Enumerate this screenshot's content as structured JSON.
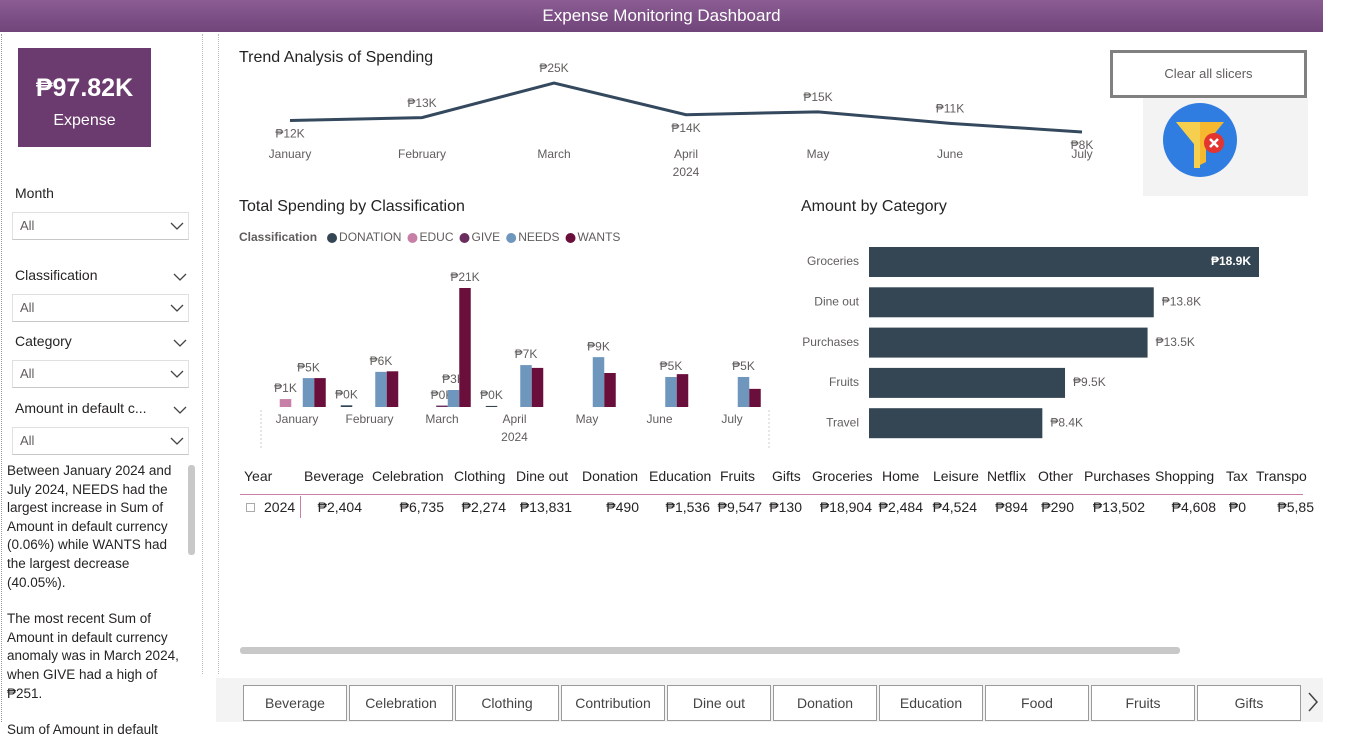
{
  "header": {
    "title": "Expense Monitoring Dashboard"
  },
  "kpi": {
    "value": "₱97.82K",
    "label": "Expense"
  },
  "slicers": [
    {
      "label": "Month",
      "value": "All"
    },
    {
      "label": "Classification",
      "value": "All"
    },
    {
      "label": "Category",
      "value": "All"
    },
    {
      "label": "Amount in default c...",
      "value": "All"
    }
  ],
  "narrative": [
    "Between January 2024 and July 2024, NEEDS had the largest increase in Sum of Amount in default currency (0.06%) while WANTS had the largest decrease (40.05%).",
    "The most recent Sum of Amount in default currency anomaly was in March 2024, when GIVE had a high of ₱251.",
    "Sum of Amount in default"
  ],
  "clear_button": "Clear all slicers",
  "chart_data": [
    {
      "type": "line",
      "title": "Trend Analysis of Spending",
      "categories": [
        "January",
        "February",
        "March",
        "April",
        "May",
        "June",
        "July"
      ],
      "x_group_label": "2024",
      "values": [
        12,
        13,
        25,
        14,
        15,
        11,
        8
      ],
      "value_labels": [
        "₱12K",
        "₱13K",
        "₱25K",
        "₱14K",
        "₱15K",
        "₱11K",
        "₱8K"
      ],
      "color": "#34495e"
    },
    {
      "type": "bar",
      "title": "Total Spending by Classification",
      "legend_title": "Classification",
      "categories": [
        "January",
        "February",
        "March",
        "April",
        "May",
        "June",
        "July"
      ],
      "x_group_label": "2024",
      "series": [
        {
          "name": "DONATION",
          "color": "#344654",
          "values": [
            null,
            0.3,
            null,
            0.19,
            null,
            null,
            null
          ],
          "value_labels": [
            null,
            "₱0K",
            null,
            "₱0K",
            null,
            null,
            null
          ]
        },
        {
          "name": "EDUC",
          "color": "#c77fa8",
          "values": [
            1.4,
            null,
            null,
            null,
            null,
            null,
            null
          ],
          "value_labels": [
            "₱1K",
            null,
            null,
            null,
            null,
            null,
            null
          ]
        },
        {
          "name": "GIVE",
          "color": "#6b2c5f",
          "values": [
            null,
            null,
            0.25,
            null,
            null,
            null,
            null
          ],
          "value_labels": [
            null,
            null,
            "₱0K",
            null,
            null,
            null,
            null
          ]
        },
        {
          "name": "NEEDS",
          "color": "#6f97bd",
          "values": [
            5.1,
            6.2,
            3,
            7.4,
            8.8,
            5.3,
            5.3
          ],
          "value_labels": [
            "₱5K",
            "₱6K",
            "₱3K",
            "₱7K",
            "₱9K",
            "₱5K",
            "₱5K"
          ]
        },
        {
          "name": "WANTS",
          "color": "#6a0f3c",
          "values": [
            5.1,
            6.3,
            21,
            6.9,
            6,
            5.8,
            3.2
          ],
          "value_labels": [
            null,
            null,
            "₱21K",
            null,
            null,
            null,
            null
          ]
        }
      ]
    },
    {
      "type": "barh",
      "title": "Amount by Category",
      "categories": [
        "Groceries",
        "Dine out",
        "Purchases",
        "Fruits",
        "Travel"
      ],
      "values": [
        18.9,
        13.8,
        13.5,
        9.5,
        8.4
      ],
      "value_labels": [
        "₱18.9K",
        "₱13.8K",
        "₱13.5K",
        "₱9.5K",
        "₱8.4K"
      ],
      "color": "#344654"
    }
  ],
  "table": {
    "headers": [
      "Year",
      "Beverage",
      "Celebration",
      "Clothing",
      "Dine out",
      "Donation",
      "Education",
      "Fruits",
      "Gifts",
      "Groceries",
      "Home",
      "Leisure",
      "Netflix",
      "Other",
      "Purchases",
      "Shopping",
      "Tax",
      "Transpo"
    ],
    "rows": [
      [
        "2024",
        "₱2,404",
        "₱6,735",
        "₱2,274",
        "₱13,831",
        "₱490",
        "₱1,536",
        "₱9,547",
        "₱130",
        "₱18,904",
        "₱2,484",
        "₱4,524",
        "₱894",
        "₱290",
        "₱13,502",
        "₱4,608",
        "₱0",
        "₱5,85"
      ]
    ]
  },
  "tabs": [
    "Beverage",
    "Celebration",
    "Clothing",
    "Contribution",
    "Dine out",
    "Donation",
    "Education",
    "Food",
    "Fruits",
    "Gifts"
  ]
}
